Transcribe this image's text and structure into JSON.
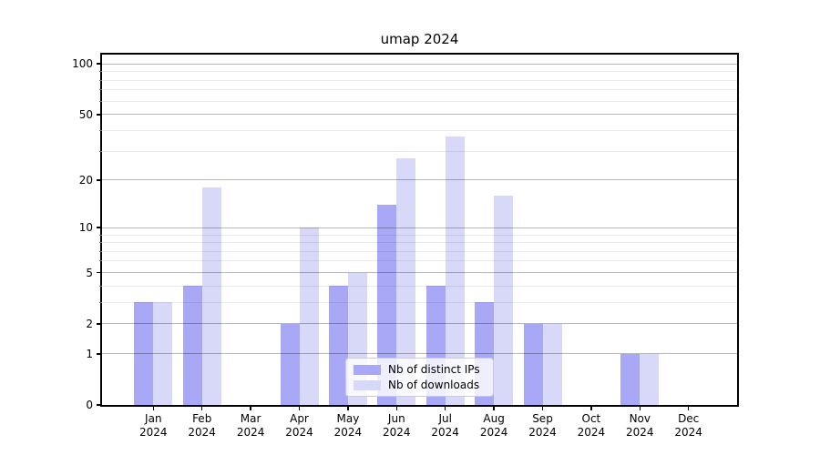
{
  "chart_data": {
    "type": "bar",
    "title": "umap 2024",
    "categories": [
      "Jan",
      "Feb",
      "Mar",
      "Apr",
      "May",
      "Jun",
      "Jul",
      "Aug",
      "Sep",
      "Oct",
      "Nov",
      "Dec"
    ],
    "year": "2024",
    "series": [
      {
        "name": "Nb of distinct IPs",
        "color": "#a8a8f6",
        "values": [
          3,
          4,
          0,
          2,
          4,
          14,
          4,
          3,
          2,
          0,
          1,
          0
        ]
      },
      {
        "name": "Nb of downloads",
        "color": "#d8d8f9",
        "values": [
          3,
          18,
          0,
          10,
          5,
          27,
          37,
          16,
          2,
          0,
          1,
          0
        ]
      }
    ],
    "xlabel": "",
    "ylabel": "",
    "yscale": "log1p",
    "ylim": [
      0,
      114
    ],
    "y_major_ticks": [
      0,
      1,
      2,
      5,
      10,
      20,
      50,
      100
    ],
    "y_minor_ticks": [
      3,
      4,
      6,
      7,
      8,
      9,
      30,
      40,
      60,
      70,
      80,
      90
    ],
    "grid": "horizontal-major-and-minor",
    "legend_position": "lower-center-inside"
  },
  "colors": {
    "background": "#ffffff",
    "spine": "#000000",
    "major_grid": "rgba(0,0,0,0.28)",
    "minor_grid": "rgba(0,0,0,0.08)",
    "minor_tick": "#777777",
    "legend_border": "#cccccc",
    "legend_bg": "rgba(255,255,255,0.8)",
    "text": "#000000"
  }
}
